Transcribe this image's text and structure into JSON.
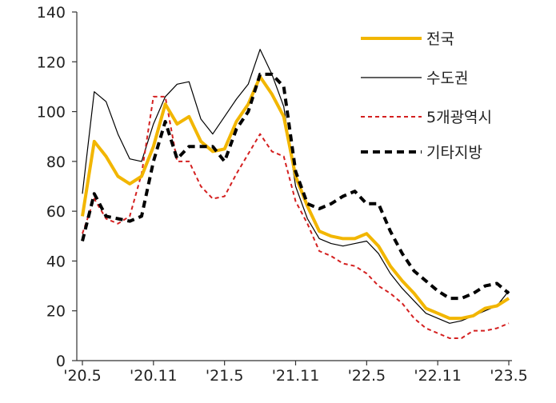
{
  "chart_data": {
    "type": "line",
    "title": "",
    "xlabel": "",
    "ylabel": "",
    "ylim": [
      0,
      140
    ],
    "yticks": [
      0,
      20,
      40,
      60,
      80,
      100,
      120,
      140
    ],
    "x": [
      "'20.5",
      "'20.6",
      "'20.7",
      "'20.8",
      "'20.9",
      "'20.10",
      "'20.11",
      "'20.12",
      "'21.1",
      "'21.2",
      "'21.3",
      "'21.4",
      "'21.5",
      "'21.6",
      "'21.7",
      "'21.8",
      "'21.9",
      "'21.10",
      "'21.11",
      "'21.12",
      "'22.1",
      "'22.2",
      "'22.3",
      "'22.4",
      "'22.5",
      "'22.6",
      "'22.7",
      "'22.8",
      "'22.9",
      "'22.10",
      "'22.11",
      "'22.12",
      "'23.1",
      "'23.2",
      "'23.3",
      "'23.4",
      "'23.5"
    ],
    "xtick_labels": [
      "'20.5",
      "'20.11",
      "'21.5",
      "'21.11",
      "'22.5",
      "'22.11",
      "'23.5"
    ],
    "grid": false,
    "legend_position": "top-right",
    "series": [
      {
        "name": "전국",
        "color": "#f2b600",
        "style": "solid-thick",
        "values": [
          58,
          88,
          82,
          74,
          71,
          74,
          86,
          103,
          95,
          98,
          88,
          84,
          85,
          96,
          103,
          114,
          107,
          98,
          74,
          62,
          52,
          50,
          49,
          49,
          51,
          46,
          38,
          32,
          27,
          21,
          19,
          17,
          17,
          18,
          21,
          22,
          25
        ]
      },
      {
        "name": "수도권",
        "color": "#000000",
        "style": "solid-thin",
        "values": [
          67,
          108,
          104,
          91,
          81,
          80,
          95,
          106,
          111,
          112,
          97,
          91,
          98,
          105,
          111,
          125,
          115,
          102,
          70,
          57,
          49,
          47,
          46,
          47,
          48,
          43,
          35,
          29,
          24,
          19,
          17,
          15,
          16,
          18,
          20,
          22,
          28
        ]
      },
      {
        "name": "5개광역시",
        "color": "#d42020",
        "style": "dashed-thin",
        "values": [
          51,
          65,
          57,
          55,
          58,
          75,
          106,
          106,
          80,
          80,
          70,
          65,
          66,
          75,
          83,
          91,
          84,
          82,
          64,
          55,
          44,
          42,
          39,
          38,
          35,
          30,
          27,
          23,
          17,
          13,
          11,
          9,
          9,
          12,
          12,
          13,
          15
        ]
      },
      {
        "name": "기타지방",
        "color": "#000000",
        "style": "dashed-thick",
        "values": [
          48,
          67,
          58,
          57,
          56,
          58,
          80,
          96,
          81,
          86,
          86,
          86,
          80,
          93,
          100,
          115,
          115,
          110,
          76,
          63,
          61,
          63,
          66,
          68,
          63,
          63,
          52,
          43,
          36,
          32,
          28,
          25,
          25,
          27,
          30,
          31,
          27
        ]
      }
    ]
  }
}
